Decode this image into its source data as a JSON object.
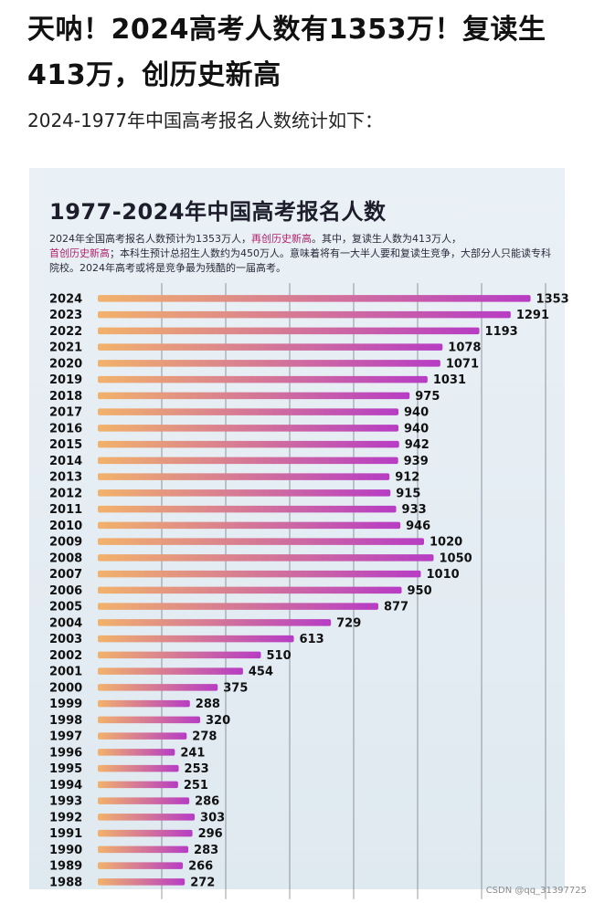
{
  "post": {
    "headline": "天呐！2024高考人数有1353万！复读生413万，创历史新高",
    "subline": "2024-1977年中国高考报名人数统计如下："
  },
  "note": {
    "part1": "2024年全国高考报名人数预计为1353万人，",
    "hl1": "再创历史新高",
    "part2": "。其中，复读生人数为413万人，",
    "hl2": "首创历史新高",
    "part3": "；本科生预计总招生人数约为450万人。意味着将有一大半人要和复读生竞争，大部分人只能读专科院校。2024年高考或将是竞争最为残酷的一届高考。"
  },
  "chart_data": {
    "type": "bar",
    "orientation": "horizontal",
    "title": "1977-2024年中国高考报名人数",
    "categories": [
      "2024",
      "2023",
      "2022",
      "2021",
      "2020",
      "2019",
      "2018",
      "2017",
      "2016",
      "2015",
      "2014",
      "2013",
      "2012",
      "2011",
      "2010",
      "2009",
      "2008",
      "2007",
      "2006",
      "2005",
      "2004",
      "2003",
      "2002",
      "2001",
      "2000",
      "1999",
      "1998",
      "1997",
      "1996",
      "1995",
      "1994",
      "1993",
      "1992",
      "1991",
      "1990",
      "1989",
      "1988"
    ],
    "values": [
      1353,
      1291,
      1193,
      1078,
      1071,
      1031,
      975,
      940,
      940,
      942,
      939,
      912,
      915,
      933,
      946,
      1020,
      1050,
      1010,
      950,
      877,
      729,
      613,
      510,
      454,
      375,
      288,
      320,
      278,
      241,
      253,
      251,
      286,
      303,
      296,
      283,
      266,
      272
    ],
    "xlim": [
      0,
      1400
    ],
    "grid": true,
    "colors": {
      "bar_start": "#f2b26a",
      "bar_end": "#b73cc4",
      "grid": "#4a4a5a",
      "label": "#111111"
    }
  },
  "watermark": "CSDN @qq_31397725"
}
